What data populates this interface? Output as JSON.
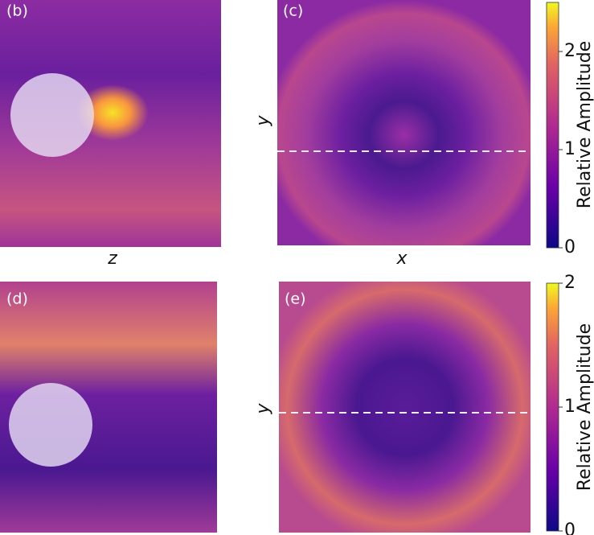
{
  "panels": [
    {
      "label": "(b)",
      "x_label": "z"
    },
    {
      "label": "(c)",
      "x_label": "x",
      "y_label": "y"
    },
    {
      "label": "(d)"
    },
    {
      "label": "(e)",
      "y_label": "y"
    }
  ],
  "colorbars": [
    {
      "label": "Relative Amplitude",
      "lim": [
        0,
        2.5
      ],
      "ticks": [
        0,
        1,
        2
      ]
    },
    {
      "label": "Relative Amplitude",
      "lim": [
        0,
        2
      ],
      "ticks": [
        0,
        1,
        2
      ]
    }
  ]
}
